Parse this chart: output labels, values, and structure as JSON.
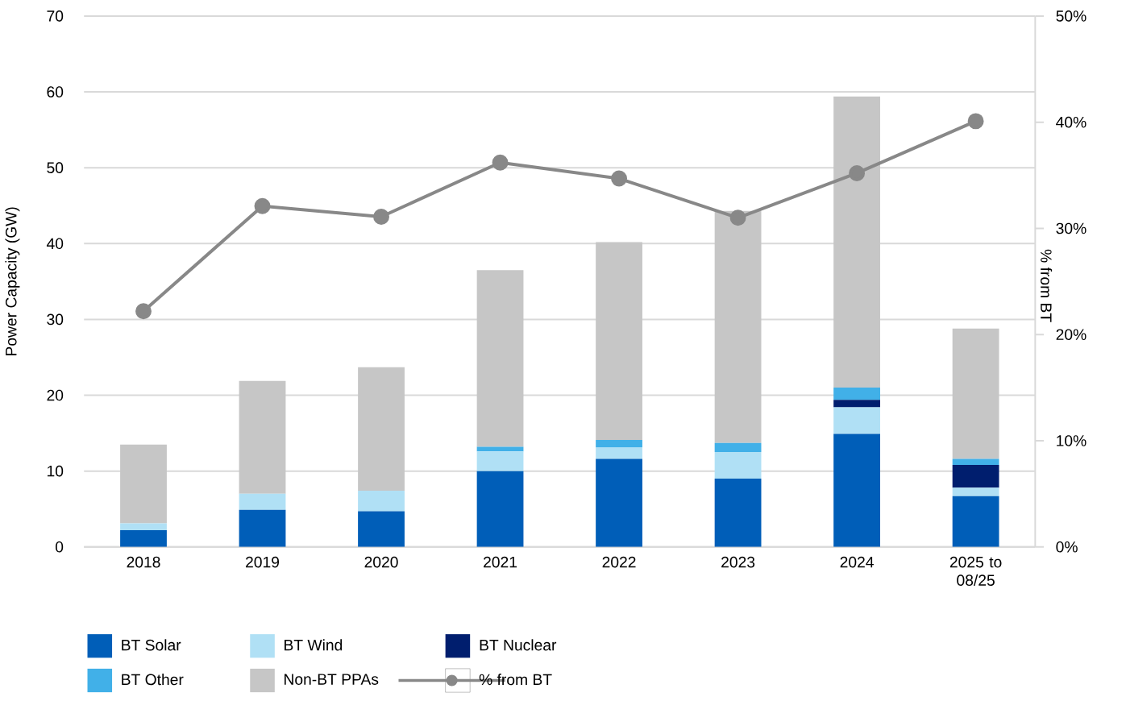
{
  "chart_data": {
    "type": "bar",
    "stacked": true,
    "ylabel": "Power Capacity (GW)",
    "y2label": "% from BT",
    "categories": [
      "2018",
      "2019",
      "2020",
      "2021",
      "2022",
      "2023",
      "2024",
      "2025 to 08/25"
    ],
    "series": [
      {
        "name": "BT Solar",
        "color": "#005eb8",
        "values": [
          2.2,
          4.9,
          4.7,
          10.0,
          11.6,
          9.0,
          14.9,
          6.7
        ]
      },
      {
        "name": "BT Wind",
        "color": "#b0e0f5",
        "values": [
          0.9,
          2.1,
          2.7,
          2.6,
          1.5,
          3.5,
          3.5,
          1.1
        ]
      },
      {
        "name": "BT Nuclear",
        "color": "#001e6e",
        "values": [
          0,
          0,
          0,
          0,
          0,
          0,
          1.0,
          3.0
        ]
      },
      {
        "name": "BT Other",
        "color": "#41b0e8",
        "values": [
          0,
          0,
          0,
          0.6,
          1.0,
          1.2,
          1.6,
          0.8
        ]
      },
      {
        "name": "Non-BT PPAs",
        "color": "#c6c6c6",
        "values": [
          10.4,
          14.9,
          16.3,
          23.3,
          26.1,
          30.6,
          38.4,
          17.2
        ]
      },
      {
        "name": "% from BT",
        "color": "#888888",
        "type": "line",
        "axis": "y2",
        "marker": "circle",
        "values": [
          22.2,
          32.1,
          31.1,
          36.2,
          34.7,
          31.0,
          35.2,
          40.1
        ]
      }
    ],
    "ylim": [
      0,
      70
    ],
    "yticks": [
      0,
      10,
      20,
      30,
      40,
      50,
      60,
      70
    ],
    "y2lim": [
      0,
      50
    ],
    "y2ticks": [
      {
        "value": 0,
        "label": "0%"
      },
      {
        "value": 10,
        "label": "10%"
      },
      {
        "value": 20,
        "label": "20%"
      },
      {
        "value": 30,
        "label": "30%"
      },
      {
        "value": 40,
        "label": "40%"
      },
      {
        "value": 50,
        "label": "50%"
      }
    ],
    "grid": "y",
    "legend": "bottom left"
  }
}
